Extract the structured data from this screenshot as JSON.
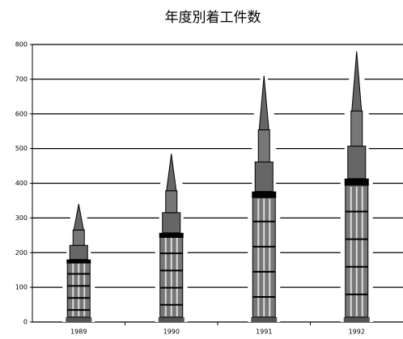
{
  "chart_data": {
    "type": "pictograph",
    "title": "年度別着工件数",
    "categories": [
      "1989",
      "1990",
      "1991",
      "1992"
    ],
    "values": [
      340,
      485,
      710,
      780
    ],
    "ylim": [
      0,
      800
    ],
    "yticks": [
      0,
      100,
      200,
      300,
      400,
      500,
      600,
      700,
      800
    ],
    "grid": true
  }
}
